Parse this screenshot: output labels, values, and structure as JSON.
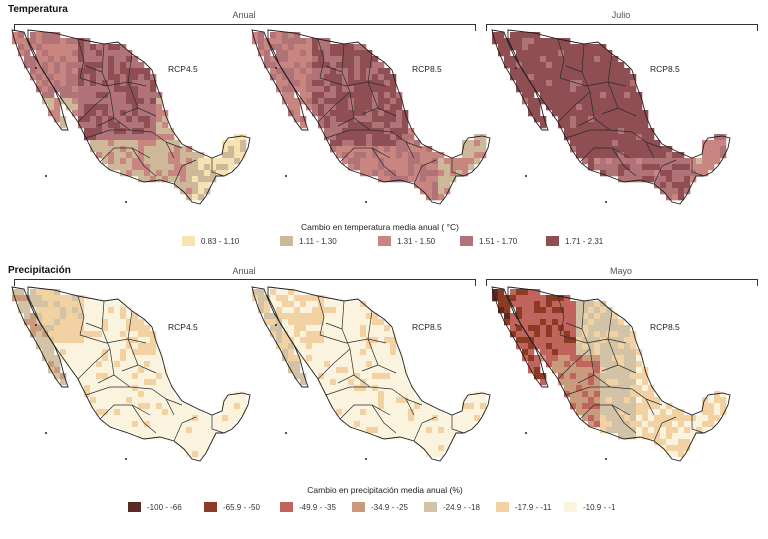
{
  "temperature": {
    "section_title": "Temperatura",
    "group_annual": "Anual",
    "group_month": "Julio",
    "maps": [
      "RCP4.5",
      "RCP8.5",
      "RCP8.5"
    ],
    "legend_title": "Cambio en temperatura media anual ( °C)",
    "legend": [
      {
        "label": "0.83 - 1.10",
        "color": "#f7e3b1"
      },
      {
        "label": "1.11 - 1.30",
        "color": "#cdb89a"
      },
      {
        "label": "1.31 - 1.50",
        "color": "#c98580"
      },
      {
        "label": "1.51 - 1.70",
        "color": "#b07377"
      },
      {
        "label": "1.71 - 2.31",
        "color": "#8e4e52"
      }
    ]
  },
  "precipitation": {
    "section_title": "Precipitación",
    "group_annual": "Anual",
    "group_month": "Mayo",
    "maps": [
      "RCP4.5",
      "RCP8.5",
      "RCP8.5"
    ],
    "legend_title": "Cambio en precipitación media anual (%)",
    "legend": [
      {
        "label": "-100 - -66",
        "color": "#5c2a24"
      },
      {
        "label": "-65.9 - -50",
        "color": "#8b3a24"
      },
      {
        "label": "-49.9 - -35",
        "color": "#c0645d"
      },
      {
        "label": "-34.9 - -25",
        "color": "#c99a7c"
      },
      {
        "label": "-24.9 - -18",
        "color": "#d2c3a7"
      },
      {
        "label": "-17.9 - -11",
        "color": "#f2d2a2"
      },
      {
        "label": "-10.9 - -1",
        "color": "#faf3de"
      }
    ]
  }
}
